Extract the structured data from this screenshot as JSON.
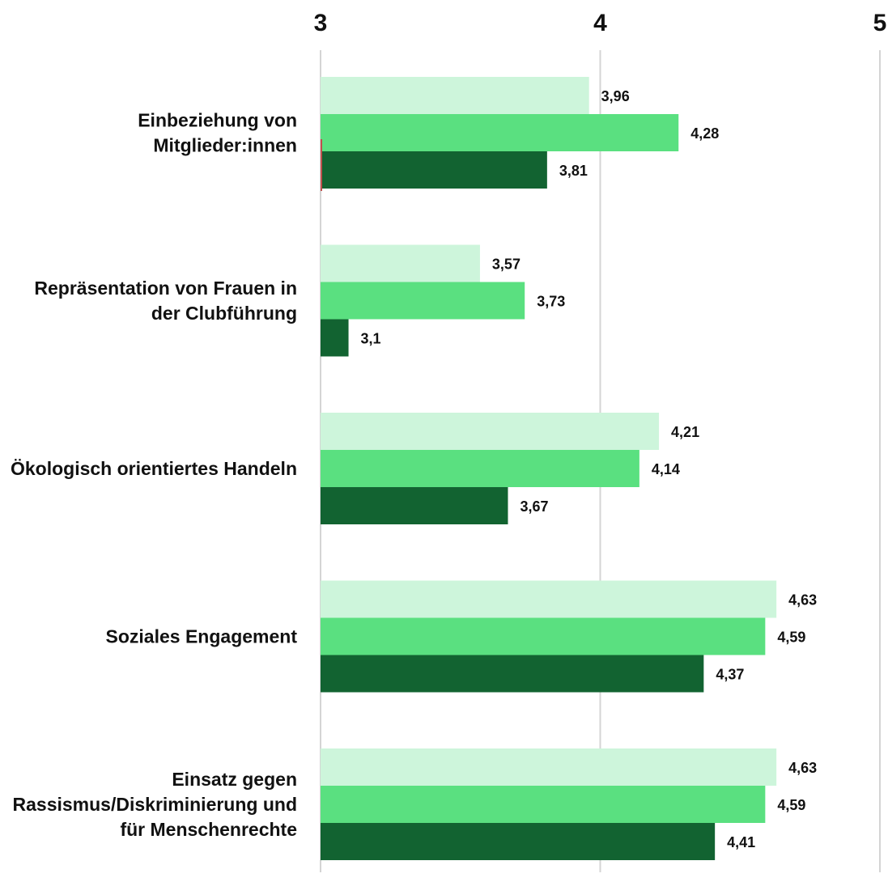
{
  "chart_data": {
    "type": "bar",
    "orientation": "horizontal",
    "title": "",
    "xlabel": "",
    "ylabel": "",
    "xlim": [
      3,
      5
    ],
    "ticks": [
      "3",
      "4",
      "5"
    ],
    "grid": true,
    "legend": "none",
    "categories": [
      [
        "Einbeziehung von",
        "Mitglieder:innen"
      ],
      [
        "Repräsentation von Frauen in",
        "der Clubführung"
      ],
      [
        "Ökologisch orientiertes Handeln"
      ],
      [
        "Soziales Engagement"
      ],
      [
        "Einsatz gegen",
        "Rassismus/Diskriminierung und",
        "für Menschenrechte"
      ]
    ],
    "series": [
      {
        "color": "#cdf5db",
        "values": [
          3.96,
          3.57,
          4.21,
          4.63,
          4.63
        ],
        "labels": [
          "3,96",
          "3,57",
          "4,21",
          "4,63",
          "4,63"
        ]
      },
      {
        "color": "#5ae080",
        "values": [
          4.28,
          3.73,
          4.14,
          4.59,
          4.59
        ],
        "labels": [
          "4,28",
          "3,73",
          "4,14",
          "4,59",
          "4,59"
        ]
      },
      {
        "color": "#126331",
        "values": [
          3.81,
          3.1,
          3.67,
          4.37,
          4.41
        ],
        "labels": [
          "3,81",
          "3,1",
          "3,67",
          "4,37",
          "4,41"
        ]
      }
    ],
    "marker_color": "#c0504d"
  }
}
